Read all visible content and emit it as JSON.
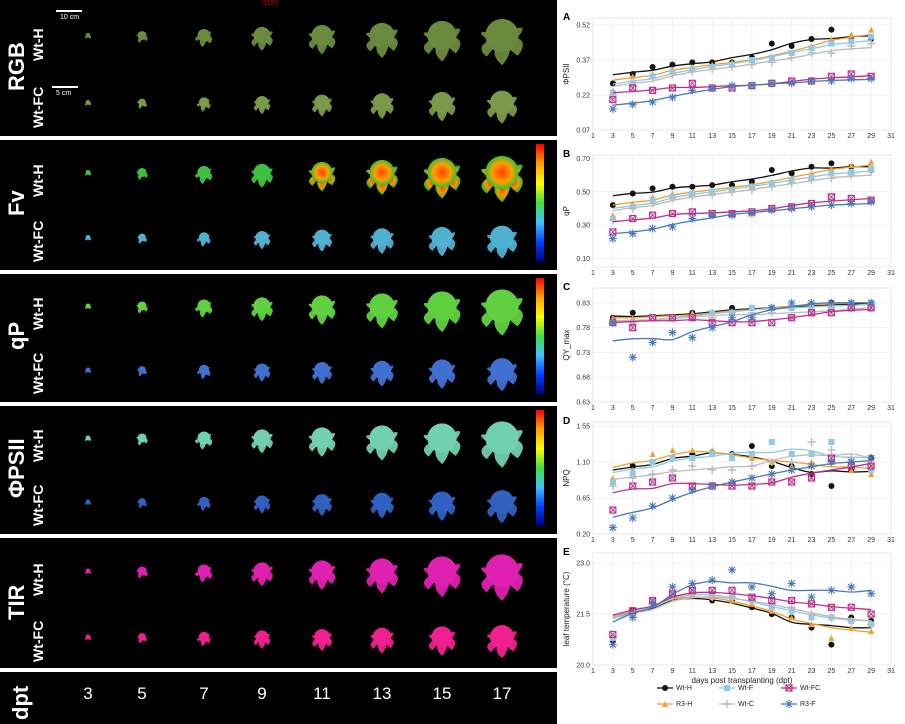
{
  "figure": {
    "top_mark": "S100",
    "rows": [
      {
        "panel": "RGB",
        "sub": [
          "Wt-H",
          "Wt-FC"
        ],
        "scalebars": [
          "10 cm",
          "5 cm"
        ]
      },
      {
        "panel": "Fv",
        "sub": [
          "Wt-H",
          "Wt-FC"
        ]
      },
      {
        "panel": "qP",
        "sub": [
          "Wt-H",
          "Wt-FC"
        ]
      },
      {
        "panel": "ΦPSII",
        "sub": [
          "Wt-H",
          "Wt-FC"
        ]
      },
      {
        "panel": "TIR",
        "sub": [
          "Wt-H",
          "Wt-FC"
        ]
      }
    ],
    "dpt_title": "dpt",
    "dpt_values": [
      "3",
      "5",
      "7",
      "9",
      "11",
      "13",
      "15",
      "17"
    ]
  },
  "colors": {
    "Wt-H": "#111111",
    "R3-H": "#f0a030",
    "Wt-F": "#8ecae6",
    "Wt-C": "#bbbbbb",
    "Wt-FC": "#c0308a",
    "R3-F": "#4a78b8"
  },
  "legend": [
    "Wt-H",
    "Wt-F",
    "Wt-FC",
    "R3-H",
    "Wt-C",
    "R3-F"
  ],
  "chart_data": [
    {
      "id": "A",
      "type": "line",
      "ylabel": "ΦPSII",
      "xlabel": "",
      "ylim": [
        0.07,
        0.55
      ],
      "yticks": [
        0.07,
        0.22,
        0.37,
        0.52
      ],
      "x": [
        3,
        5,
        7,
        9,
        11,
        13,
        15,
        17,
        19,
        21,
        23,
        25,
        27,
        29
      ],
      "series": [
        {
          "name": "Wt-H",
          "values": [
            0.27,
            0.31,
            0.34,
            0.35,
            0.36,
            0.36,
            0.36,
            0.38,
            0.44,
            0.43,
            0.46,
            0.5,
            0.46,
            0.46
          ]
        },
        {
          "name": "R3-H",
          "values": [
            0.24,
            0.3,
            0.31,
            0.33,
            0.34,
            0.35,
            0.36,
            0.37,
            0.38,
            0.4,
            0.43,
            0.46,
            0.48,
            0.5
          ]
        },
        {
          "name": "Wt-F",
          "values": [
            0.23,
            0.27,
            0.3,
            0.32,
            0.33,
            0.34,
            0.35,
            0.37,
            0.38,
            0.4,
            0.42,
            0.44,
            0.45,
            0.47
          ]
        },
        {
          "name": "Wt-C",
          "values": [
            0.22,
            0.26,
            0.29,
            0.31,
            0.32,
            0.33,
            0.34,
            0.35,
            0.36,
            0.38,
            0.4,
            0.4,
            0.43,
            0.44
          ]
        },
        {
          "name": "Wt-FC",
          "values": [
            0.2,
            0.25,
            0.24,
            0.25,
            0.27,
            0.25,
            0.25,
            0.26,
            0.27,
            0.28,
            0.28,
            0.3,
            0.31,
            0.3
          ]
        },
        {
          "name": "R3-F",
          "values": [
            0.16,
            0.18,
            0.19,
            0.21,
            0.24,
            0.25,
            0.26,
            0.26,
            0.27,
            0.27,
            0.28,
            0.28,
            0.29,
            0.29
          ]
        }
      ]
    },
    {
      "id": "B",
      "type": "line",
      "ylabel": "qP",
      "xlabel": "",
      "ylim": [
        0.05,
        0.72
      ],
      "yticks": [
        0.1,
        0.3,
        0.5,
        0.7
      ],
      "x": [
        3,
        5,
        7,
        9,
        11,
        13,
        15,
        17,
        19,
        21,
        23,
        25,
        27,
        29
      ],
      "series": [
        {
          "name": "Wt-H",
          "values": [
            0.42,
            0.49,
            0.52,
            0.53,
            0.53,
            0.54,
            0.54,
            0.56,
            0.63,
            0.61,
            0.65,
            0.67,
            0.65,
            0.63
          ]
        },
        {
          "name": "R3-H",
          "values": [
            0.36,
            0.43,
            0.47,
            0.49,
            0.5,
            0.51,
            0.52,
            0.54,
            0.56,
            0.58,
            0.61,
            0.64,
            0.66,
            0.68
          ]
        },
        {
          "name": "Wt-F",
          "values": [
            0.34,
            0.41,
            0.45,
            0.47,
            0.49,
            0.5,
            0.51,
            0.53,
            0.55,
            0.57,
            0.59,
            0.61,
            0.62,
            0.64
          ]
        },
        {
          "name": "Wt-C",
          "values": [
            0.33,
            0.4,
            0.43,
            0.46,
            0.47,
            0.48,
            0.5,
            0.51,
            0.53,
            0.55,
            0.57,
            0.58,
            0.6,
            0.62
          ]
        },
        {
          "name": "Wt-FC",
          "values": [
            0.26,
            0.34,
            0.36,
            0.37,
            0.38,
            0.37,
            0.37,
            0.38,
            0.4,
            0.41,
            0.43,
            0.47,
            0.46,
            0.45
          ]
        },
        {
          "name": "R3-F",
          "values": [
            0.22,
            0.25,
            0.28,
            0.29,
            0.34,
            0.36,
            0.36,
            0.37,
            0.39,
            0.4,
            0.41,
            0.42,
            0.43,
            0.44
          ]
        }
      ]
    },
    {
      "id": "C",
      "type": "line",
      "ylabel": "QY_max",
      "xlabel": "",
      "ylim": [
        0.63,
        0.86
      ],
      "yticks": [
        0.63,
        0.68,
        0.73,
        0.78,
        0.83
      ],
      "x": [
        3,
        5,
        7,
        9,
        11,
        13,
        15,
        17,
        19,
        21,
        23,
        25,
        27,
        29
      ],
      "series": [
        {
          "name": "Wt-H",
          "values": [
            0.8,
            0.81,
            0.8,
            0.8,
            0.81,
            0.81,
            0.82,
            0.82,
            0.82,
            0.82,
            0.82,
            0.83,
            0.83,
            0.83
          ]
        },
        {
          "name": "R3-H",
          "values": [
            0.8,
            0.8,
            0.8,
            0.8,
            0.81,
            0.81,
            0.81,
            0.82,
            0.82,
            0.82,
            0.83,
            0.83,
            0.83,
            0.83
          ]
        },
        {
          "name": "Wt-F",
          "values": [
            0.79,
            0.79,
            0.8,
            0.8,
            0.8,
            0.81,
            0.81,
            0.82,
            0.82,
            0.82,
            0.82,
            0.82,
            0.83,
            0.83
          ]
        },
        {
          "name": "Wt-C",
          "values": [
            0.79,
            0.79,
            0.8,
            0.8,
            0.8,
            0.8,
            0.81,
            0.81,
            0.81,
            0.8,
            0.81,
            0.82,
            0.82,
            0.82
          ]
        },
        {
          "name": "Wt-FC",
          "values": [
            0.79,
            0.78,
            0.8,
            0.8,
            0.8,
            0.79,
            0.79,
            0.79,
            0.79,
            0.8,
            0.81,
            0.81,
            0.82,
            0.82
          ]
        },
        {
          "name": "R3-F",
          "values": [
            0.79,
            0.72,
            0.75,
            0.77,
            0.76,
            0.78,
            0.8,
            0.8,
            0.82,
            0.83,
            0.83,
            0.83,
            0.83,
            0.83
          ]
        }
      ]
    },
    {
      "id": "D",
      "type": "line",
      "ylabel": "NPQ",
      "xlabel": "",
      "ylim": [
        0.2,
        1.6
      ],
      "yticks": [
        0.2,
        0.65,
        1.1,
        1.55
      ],
      "x": [
        3,
        5,
        7,
        9,
        11,
        13,
        15,
        17,
        19,
        21,
        23,
        25,
        27,
        29
      ],
      "series": [
        {
          "name": "Wt-H",
          "values": [
            0.85,
            1.05,
            1.1,
            1.15,
            1.2,
            1.22,
            1.2,
            1.3,
            1.05,
            1.05,
            0.95,
            0.8,
            1.0,
            1.15
          ]
        },
        {
          "name": "R3-H",
          "values": [
            0.9,
            1.0,
            1.2,
            1.25,
            1.25,
            1.25,
            1.2,
            1.15,
            1.1,
            1.05,
            1.1,
            1.1,
            1.0,
            0.95
          ]
        },
        {
          "name": "Wt-F",
          "values": [
            0.85,
            0.95,
            1.1,
            1.15,
            1.15,
            1.2,
            1.15,
            1.2,
            1.35,
            1.2,
            1.2,
            1.35,
            1.1,
            1.0
          ]
        },
        {
          "name": "Wt-C",
          "values": [
            0.8,
            0.9,
            0.95,
            1.0,
            1.05,
            1.0,
            1.0,
            1.05,
            1.1,
            1.1,
            1.35,
            1.25,
            1.15,
            1.05
          ]
        },
        {
          "name": "Wt-FC",
          "values": [
            0.5,
            0.8,
            0.85,
            0.9,
            0.8,
            0.8,
            0.8,
            0.8,
            0.85,
            0.85,
            0.9,
            1.15,
            1.05,
            1.05
          ]
        },
        {
          "name": "R3-F",
          "values": [
            0.28,
            0.4,
            0.55,
            0.65,
            0.75,
            0.8,
            0.85,
            0.9,
            0.95,
            1.0,
            1.05,
            1.1,
            1.1,
            1.15
          ]
        }
      ]
    },
    {
      "id": "E",
      "type": "line",
      "ylabel": "leaf temperature (°C)",
      "xlabel": "days post transplanting (dpt)",
      "ylim": [
        20.0,
        23.3
      ],
      "yticks": [
        20.0,
        21.5,
        23.0
      ],
      "xticks": [
        1,
        3,
        5,
        7,
        9,
        11,
        13,
        15,
        17,
        19,
        21,
        23,
        25,
        27,
        29,
        31
      ],
      "x": [
        3,
        5,
        7,
        9,
        11,
        13,
        15,
        17,
        19,
        21,
        23,
        25,
        27,
        29
      ],
      "series": [
        {
          "name": "Wt-H",
          "values": [
            20.7,
            21.6,
            21.9,
            22.0,
            22.1,
            21.9,
            21.9,
            21.7,
            21.5,
            21.4,
            21.1,
            20.6,
            21.4,
            21.3
          ]
        },
        {
          "name": "R3-H",
          "values": [
            20.8,
            21.6,
            21.9,
            22.1,
            22.1,
            22.0,
            21.9,
            21.8,
            21.6,
            21.4,
            21.2,
            20.8,
            21.1,
            21.0
          ]
        },
        {
          "name": "Wt-F",
          "values": [
            20.8,
            21.5,
            21.9,
            22.1,
            22.2,
            22.1,
            22.0,
            21.9,
            21.7,
            21.6,
            21.4,
            21.4,
            21.3,
            21.2
          ]
        },
        {
          "name": "Wt-C",
          "values": [
            20.8,
            21.5,
            21.8,
            22.0,
            22.1,
            22.0,
            22.0,
            21.9,
            21.8,
            21.7,
            21.5,
            21.4,
            21.3,
            21.2
          ]
        },
        {
          "name": "Wt-FC",
          "values": [
            20.9,
            21.6,
            21.9,
            22.1,
            22.2,
            22.2,
            22.2,
            22.0,
            21.9,
            21.9,
            21.8,
            21.7,
            21.7,
            21.5
          ]
        },
        {
          "name": "R3-F",
          "values": [
            20.6,
            21.4,
            21.8,
            22.3,
            22.4,
            22.5,
            22.8,
            22.3,
            22.1,
            22.4,
            22.0,
            22.2,
            22.3,
            22.1
          ]
        }
      ]
    }
  ],
  "shared_xticks": [
    1,
    3,
    5,
    7,
    9,
    11,
    13,
    15,
    17,
    19,
    21,
    23,
    25,
    27,
    29,
    31
  ]
}
